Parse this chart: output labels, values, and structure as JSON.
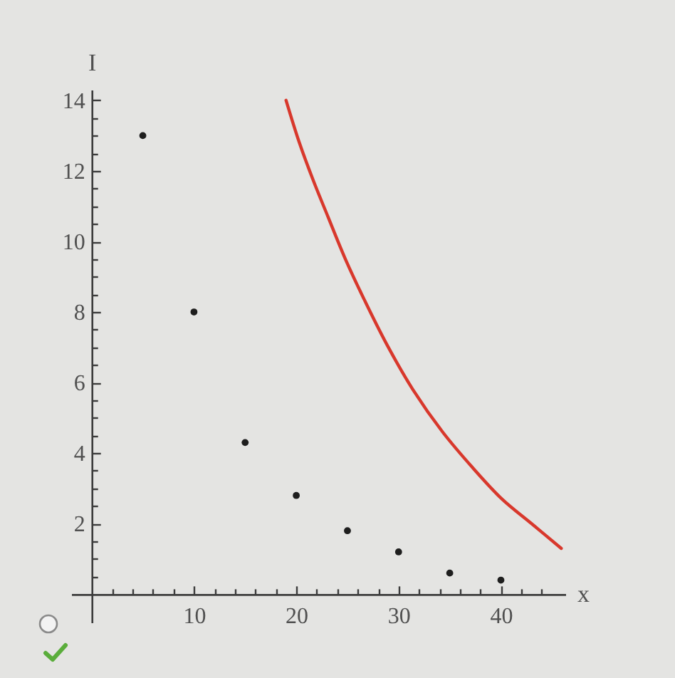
{
  "chart_data": {
    "type": "scatter",
    "xlabel": "x",
    "ylabel": "I",
    "xlim": [
      -2,
      46.3
    ],
    "ylim": [
      -0.8,
      14.3
    ],
    "xticks": [
      {
        "value": 2,
        "label": null
      },
      {
        "value": 4,
        "label": null
      },
      {
        "value": 6,
        "label": null
      },
      {
        "value": 8,
        "label": null
      },
      10,
      {
        "value": 12,
        "label": null
      },
      {
        "value": 14,
        "label": null
      },
      {
        "value": 16,
        "label": null
      },
      {
        "value": 18,
        "label": null
      },
      20,
      {
        "value": 22,
        "label": null
      },
      {
        "value": 24,
        "label": null
      },
      {
        "value": 26,
        "label": null
      },
      {
        "value": 28,
        "label": null
      },
      30,
      {
        "value": 32,
        "label": null
      },
      {
        "value": 34,
        "label": null
      },
      {
        "value": 36,
        "label": null
      },
      {
        "value": 38,
        "label": null
      },
      40,
      {
        "value": 42,
        "label": null
      },
      {
        "value": 44,
        "label": null
      }
    ],
    "yticks": [
      {
        "value": 0.5,
        "label": null
      },
      {
        "value": 1,
        "label": null
      },
      {
        "value": 1.5,
        "label": null
      },
      2,
      {
        "value": 2.5,
        "label": null
      },
      {
        "value": 3,
        "label": null
      },
      {
        "value": 3.5,
        "label": null
      },
      4,
      {
        "value": 4.5,
        "label": null
      },
      {
        "value": 5,
        "label": null
      },
      {
        "value": 5.5,
        "label": null
      },
      6,
      {
        "value": 6.5,
        "label": null
      },
      {
        "value": 7,
        "label": null
      },
      {
        "value": 7.5,
        "label": null
      },
      8,
      {
        "value": 8.5,
        "label": null
      },
      {
        "value": 9,
        "label": null
      },
      {
        "value": 9.5,
        "label": null
      },
      10,
      {
        "value": 10.5,
        "label": null
      },
      {
        "value": 11,
        "label": null
      },
      {
        "value": 11.5,
        "label": null
      },
      12,
      {
        "value": 12.5,
        "label": null
      },
      {
        "value": 13,
        "label": null
      },
      {
        "value": 13.5,
        "label": null
      },
      14
    ],
    "series": [
      {
        "color": "#1e1e1e",
        "marker": "circle",
        "x": [
          5,
          10,
          15,
          20,
          25,
          30,
          35,
          40
        ],
        "values": [
          13,
          8,
          4.3,
          2.8,
          1.8,
          1.2,
          0.6,
          0.4
        ]
      },
      {
        "type": "line",
        "color": "#d8382c",
        "marker": "none",
        "x": [
          19,
          20.3,
          21.7,
          23.1,
          24.8,
          26.9,
          29,
          31.4,
          34.3,
          37.2,
          40.1,
          43,
          45.9
        ],
        "values": [
          14,
          12.8,
          11.7,
          10.7,
          9.5,
          8.2,
          7,
          5.8,
          4.6,
          3.6,
          2.7,
          2,
          1.3
        ]
      }
    ]
  }
}
